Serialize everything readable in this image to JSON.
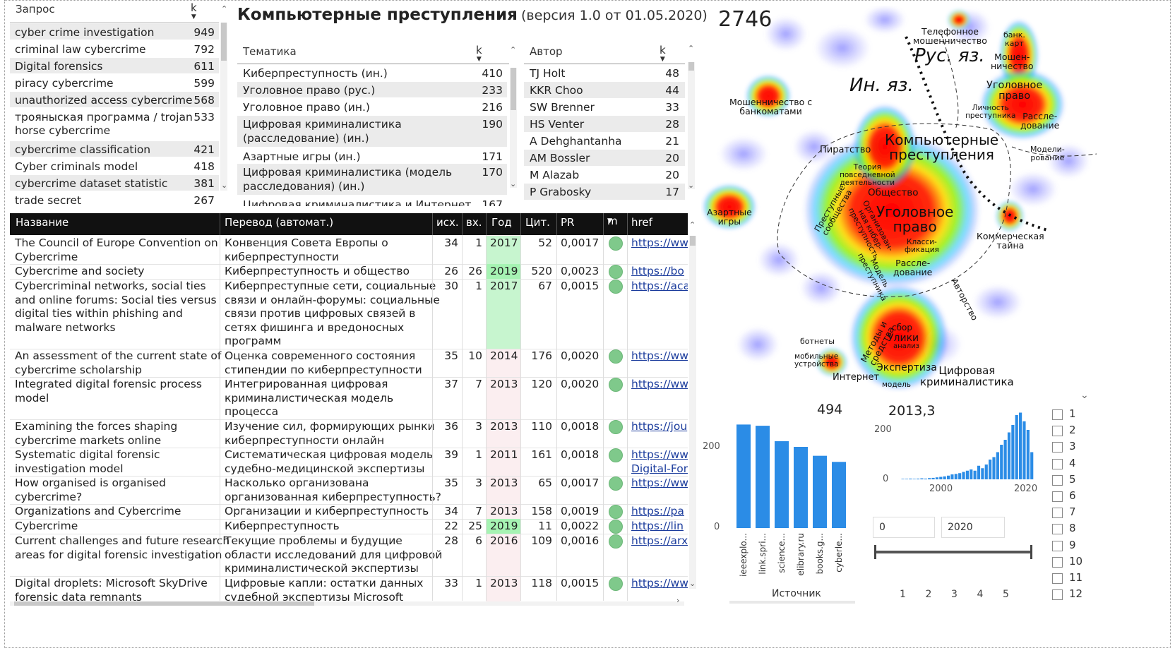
{
  "queries": {
    "header": "Запрос",
    "k_header": "k",
    "rows": [
      {
        "q": "cyber crime investigation",
        "k": "949"
      },
      {
        "q": "criminal law cybercrime",
        "k": "792"
      },
      {
        "q": "Digital forensics",
        "k": "611"
      },
      {
        "q": "piracy cybercrime",
        "k": "599"
      },
      {
        "q": "unauthorized access cybercrime",
        "k": "568"
      },
      {
        "q": "трояныская программа / trojan",
        "q2": "horse cybercrime",
        "k": "533"
      },
      {
        "q": "cybercrime classification",
        "k": "421"
      },
      {
        "q": "Cyber criminals model",
        "k": "418"
      },
      {
        "q": "cybercrime dataset statistic",
        "k": "381"
      },
      {
        "q": "trade secret",
        "k": "267"
      }
    ]
  },
  "title": {
    "main": "Компьютерные преступления",
    "version": "(версия 1.0 от 01.05.2020)"
  },
  "topics": {
    "header": "Тематика",
    "k_header": "k",
    "rows": [
      {
        "t": "Киберпреступность (ин.)",
        "k": "410"
      },
      {
        "t": "Уголовное право (рус.)",
        "k": "233"
      },
      {
        "t": "Уголовное право (ин.)",
        "k": "216"
      },
      {
        "t": "Цифровая криминалистика",
        "t2": "(расследование) (ин.)",
        "k": "190"
      },
      {
        "t": "Азартные игры (ин.)",
        "k": "171"
      },
      {
        "t": "Цифровая криминалистика (модель",
        "t2": "расследования) (ин.)",
        "k": "170"
      },
      {
        "t": "Цифровая криминалистика и Интернет",
        "k": "167"
      }
    ]
  },
  "authors": {
    "header": "Автор",
    "k_header": "k",
    "rows": [
      {
        "a": "TJ Holt",
        "k": "48"
      },
      {
        "a": "KKR Choo",
        "k": "44"
      },
      {
        "a": "SW Brenner",
        "k": "33"
      },
      {
        "a": "HS Venter",
        "k": "28"
      },
      {
        "a": "A Dehghantanha",
        "k": "21"
      },
      {
        "a": "AM Bossler",
        "k": "20"
      },
      {
        "a": "M Alazab",
        "k": "20"
      },
      {
        "a": "P Grabosky",
        "k": "17"
      }
    ]
  },
  "table": {
    "headers": {
      "name": "Название",
      "trans": "Перевод (автомат.)",
      "out": "исх.",
      "in": "вх.",
      "year": "Год",
      "cit": "Цит.",
      "pr": "PR",
      "m": "m",
      "href": "href"
    },
    "rows": [
      {
        "n1": "The Council of Europe Convention on",
        "n2": "Cybercrime",
        "t1": "Конвенция Совета Европы о",
        "t2": "киберпреступности",
        "out": "34",
        "in": "1",
        "year": "2017",
        "cit": "52",
        "pr": "0,0017",
        "href": "https://ww"
      },
      {
        "n1": "Cybercrime and society",
        "t1": "Киберпреступность и общество",
        "out": "26",
        "in": "26",
        "year": "2019",
        "cit": "520",
        "pr": "0,0023",
        "href": "https://bo"
      },
      {
        "n1": "Cybercriminal networks, social ties",
        "n2": "and online forums: Social ties versus",
        "n3": "digital ties within phishing and",
        "n4": "malware networks",
        "t1": "Киберпреступные сети, социальные",
        "t2": "связи и онлайн-форумы: социальные",
        "t3": "связи против цифровых связей в",
        "t4": "сетях фишинга и вредоносных",
        "t5": "программ",
        "out": "30",
        "in": "1",
        "year": "2017",
        "cit": "67",
        "pr": "0,0015",
        "href": "https://aca"
      },
      {
        "n1": "An assessment of the current state of",
        "n2": "cybercrime scholarship",
        "t1": "Оценка современного состояния",
        "t2": "стипендии по киберпреступности",
        "out": "35",
        "in": "10",
        "year": "2014",
        "cit": "176",
        "pr": "0,0020",
        "href": "https://ww"
      },
      {
        "n1": "Integrated digital forensic process",
        "n2": "model",
        "t1": "Интегрированная цифровая",
        "t2": "криминалистическая модель",
        "t3": "процесса",
        "out": "37",
        "in": "7",
        "year": "2013",
        "cit": "120",
        "pr": "0,0020",
        "href": "https://ww"
      },
      {
        "n1": "Examining the forces shaping",
        "n2": "cybercrime markets online",
        "t1": "Изучение сил, формирующих рынки",
        "t2": "киберпреступности онлайн",
        "out": "36",
        "in": "3",
        "year": "2013",
        "cit": "110",
        "pr": "0,0018",
        "href": "https://jou"
      },
      {
        "n1": "Systematic digital forensic",
        "n2": "investigation model",
        "t1": "Систематическая цифровая модель",
        "t2": "судебно-медицинской экспертизы",
        "out": "39",
        "in": "1",
        "year": "2011",
        "cit": "161",
        "pr": "0,0018",
        "href": "https://ww",
        "href2": "Digital-For"
      },
      {
        "n1": "How organised is organised",
        "n2": "cybercrime?",
        "t1": "Насколько организована",
        "t2": "организованная киберпреступность?",
        "out": "35",
        "in": "3",
        "year": "2013",
        "cit": "65",
        "pr": "0,0017",
        "href": "https://ww"
      },
      {
        "n1": "Organizations and Cybercrime",
        "t1": "Организации и киберпреступность",
        "out": "34",
        "in": "7",
        "year": "2013",
        "cit": "158",
        "pr": "0,0019",
        "href": "https://pa"
      },
      {
        "n1": "Cybercrime",
        "t1": "Киберпреступность",
        "out": "22",
        "in": "25",
        "year": "2019",
        "cit": "11",
        "pr": "0,0022",
        "href": "https://lin"
      },
      {
        "n1": "Current challenges and future research",
        "n2": "areas for digital forensic investigation",
        "t1": "Текущие проблемы и будущие",
        "t2": "области исследований для цифровой",
        "t3": "криминалистической экспертизы",
        "out": "28",
        "in": "6",
        "year": "2016",
        "cit": "109",
        "pr": "0,0016",
        "href": "https://arx"
      },
      {
        "n1": "Digital droplets: Microsoft SkyDrive",
        "n2": "forensic data remnants",
        "t1": "Цифровые капли: остатки данных",
        "t2": "судебной экспертизы Microsoft",
        "out": "33",
        "in": "1",
        "year": "2013",
        "cit": "118",
        "pr": "0,0015",
        "href": "https://ww"
      }
    ]
  },
  "map": {
    "count": "2746",
    "labels": {
      "phone": "Телефонное\nмошенничество",
      "bankcards": "банк.\nкарт",
      "rus": "Рус. яз.",
      "foreign": "Ин. яз.",
      "atm": "Мошенничество с\nбанкоматами",
      "fraud": "Мошен-\nничество",
      "crimlaw_r": "Уголовное\nправо",
      "personality": "Личность\nпреступника",
      "investigation_r": "Рассле-\nдование",
      "piracy": "Пиратство",
      "compcrime": "Компьютерные\nпреступления",
      "modeling": "Модели-\nрование",
      "theory": "Теория\nповседневной\nдеятельности",
      "society": "Общество",
      "gambling": "Азартные\nигры",
      "crimcomm": "Преступные\nсообщества",
      "orgcrime": "Организован-\nная кибер-\nпреступность",
      "crimlaw": "Уголовное\nправо",
      "classif": "Класси-\nфикация",
      "commsecret": "Коммерческая\nтайна",
      "investig": "Рассле-\nдование",
      "model_crim": "Модель\nпреступника",
      "copyright": "Авторство",
      "botnets": "ботнеты",
      "collection": "сбор",
      "evidence": "Улики",
      "analysis": "анализ",
      "methods": "Методы и\nсредства",
      "mobile": "мобильные\nустройства",
      "expertise": "Экспертиза",
      "internet": "Интернет",
      "model": "модель",
      "digforensics": "Цифровая\nкриминалистика"
    }
  },
  "bar_chart": {
    "total": "494",
    "y_tick_200": "200",
    "y_tick_0": "0",
    "xlabel": "Источник",
    "color": "#2b8ce6"
  },
  "chart_data": [
    {
      "type": "bar",
      "categories": [
        "ieeexplo...",
        "link.spri...",
        "science...",
        "elibrary.ru",
        "books.g...",
        "cyberle..."
      ],
      "values": [
        255,
        252,
        214,
        200,
        178,
        163
      ],
      "xlabel": "Источник",
      "ylim": [
        0,
        300
      ]
    },
    {
      "type": "bar",
      "title": "2013,3",
      "x": [
        1986,
        1987,
        1988,
        1989,
        1990,
        1991,
        1992,
        1993,
        1994,
        1995,
        1996,
        1997,
        1998,
        1999,
        2000,
        2001,
        2002,
        2003,
        2004,
        2005,
        2006,
        2007,
        2008,
        2009,
        2010,
        2011,
        2012,
        2013,
        2014,
        2015,
        2016,
        2017,
        2018,
        2019,
        2020
      ],
      "values": [
        2,
        2,
        3,
        2,
        3,
        4,
        3,
        5,
        6,
        8,
        10,
        12,
        15,
        20,
        22,
        25,
        30,
        35,
        40,
        35,
        55,
        45,
        60,
        80,
        90,
        110,
        140,
        160,
        190,
        220,
        260,
        270,
        235,
        200,
        110
      ],
      "ylim": [
        0,
        280
      ],
      "xticks": [
        "2000",
        "2020"
      ],
      "yticks": [
        "200",
        "0"
      ]
    }
  ],
  "year_chart": {
    "value": "2013,3",
    "y_tick_200": "200",
    "y_tick_0": "0",
    "x_tick_2000": "2000",
    "x_tick_2020": "2020"
  },
  "year_range": {
    "from": "0",
    "to": "2020"
  },
  "pager": [
    "1",
    "2",
    "3",
    "4",
    "5"
  ],
  "checklist": [
    "1",
    "2",
    "3",
    "4",
    "5",
    "6",
    "7",
    "8",
    "9",
    "10",
    "11",
    "12"
  ]
}
